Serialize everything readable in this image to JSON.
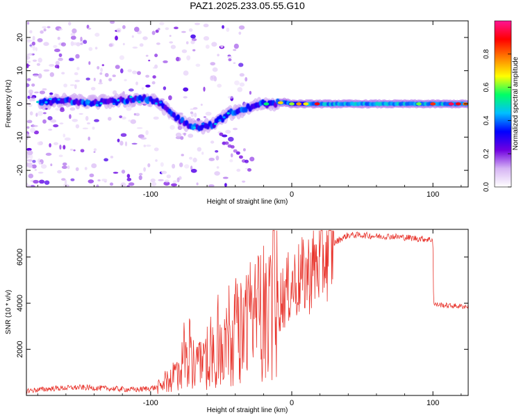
{
  "chart_data": [
    {
      "type": "heatmap",
      "title": "PAZ1.2025.233.05.55.G10",
      "xlabel": "Height of straight line (km)",
      "ylabel": "Frequency (Hz)",
      "xlim": [
        -188,
        125
      ],
      "ylim": [
        -25,
        25
      ],
      "xticks": [
        -100,
        0,
        100
      ],
      "xtick_labels": [
        "-100",
        "0",
        "100"
      ],
      "yticks": [
        -20,
        -10,
        0,
        10,
        20
      ],
      "ytick_labels": [
        "-20",
        "-10",
        "0",
        "10",
        "20"
      ],
      "colorbar": {
        "label": "Normalized spectral amplitude",
        "range": [
          0,
          1
        ],
        "ticks": [
          0.0,
          0.2,
          0.4,
          0.6,
          0.8
        ],
        "tick_labels": [
          "0.0",
          "0.2",
          "0.4",
          "0.6",
          "0.8"
        ],
        "colors": [
          "#ffffff",
          "#d6b4f4",
          "#7000e0",
          "#0000ff",
          "#00bfff",
          "#00ff66",
          "#ffff00",
          "#ff8000",
          "#ff0000",
          "#ff1493"
        ]
      },
      "ridge": {
        "x": [
          -185,
          -160,
          -140,
          -120,
          -105,
          -95,
          -85,
          -75,
          -65,
          -55,
          -45,
          -35,
          -25,
          -15,
          -5,
          0,
          20,
          50,
          80,
          100,
          120
        ],
        "freq": [
          0,
          1,
          0.5,
          1,
          1.5,
          0.5,
          -3,
          -6,
          -7,
          -6,
          -3,
          -2,
          0,
          0,
          0.5,
          0,
          0,
          0,
          0,
          0,
          0
        ]
      }
    },
    {
      "type": "line",
      "title": "",
      "xlabel": "Height of straight line (km)",
      "ylabel": "SNR (10 * v/v)",
      "xlim": [
        -188,
        125
      ],
      "ylim": [
        0,
        7200
      ],
      "xticks": [
        -100,
        0,
        100
      ],
      "xtick_labels": [
        "-100",
        "0",
        "100"
      ],
      "yticks": [
        2000,
        4000,
        6000
      ],
      "ytick_labels": [
        "2000",
        "4000",
        "6000"
      ],
      "line_color": "#e8342c",
      "series": [
        {
          "name": "SNR",
          "x": [
            -188,
            -170,
            -150,
            -130,
            -110,
            -95,
            -90,
            -85,
            -80,
            -75,
            -70,
            -65,
            -60,
            -55,
            -50,
            -45,
            -40,
            -35,
            -30,
            -25,
            -20,
            -15,
            -10,
            -5,
            0,
            5,
            10,
            15,
            20,
            25,
            30,
            35,
            40,
            50,
            60,
            70,
            80,
            90,
            100,
            100.5,
            110,
            125
          ],
          "y": [
            200,
            300,
            350,
            300,
            250,
            350,
            500,
            800,
            1200,
            1500,
            1400,
            1300,
            1600,
            1800,
            2000,
            2400,
            2600,
            2800,
            3000,
            3400,
            3600,
            3800,
            4000,
            4400,
            4800,
            5000,
            5200,
            5500,
            5800,
            6200,
            6600,
            6800,
            6950,
            6950,
            6900,
            6900,
            6850,
            6800,
            6750,
            3950,
            3900,
            3850
          ]
        }
      ]
    }
  ]
}
